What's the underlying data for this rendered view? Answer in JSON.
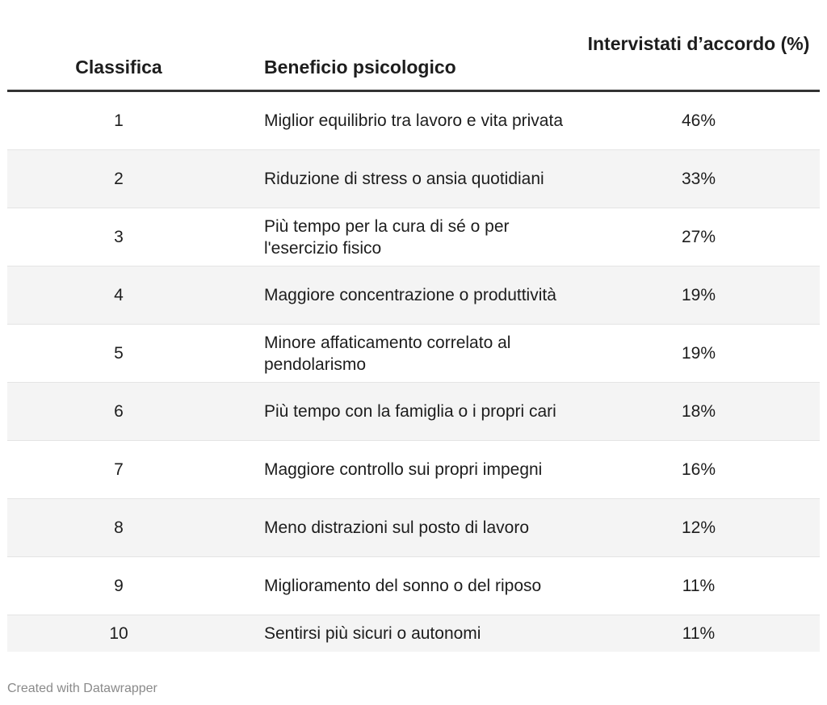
{
  "chart_data": {
    "type": "table",
    "columns": [
      "Classifica",
      "Beneficio psicologico",
      "Intervistati d’accordo (%)"
    ],
    "header": {
      "rank": "Classifica",
      "benefit": "Beneficio psicologico",
      "pct": "Intervistati d’accordo (%)"
    },
    "rows": [
      {
        "rank": "1",
        "benefit": "Miglior equilibrio tra lavoro e vita privata",
        "pct": "46%"
      },
      {
        "rank": "2",
        "benefit": "Riduzione di stress o ansia quotidiani",
        "pct": "33%"
      },
      {
        "rank": "3",
        "benefit": "Più tempo per la cura di sé o per l'esercizio fisico",
        "pct": "27%"
      },
      {
        "rank": "4",
        "benefit": "Maggiore concentrazione o produttività",
        "pct": "19%"
      },
      {
        "rank": "5",
        "benefit": "Minore affaticamento correlato al pendolarismo",
        "pct": "19%"
      },
      {
        "rank": "6",
        "benefit": "Più tempo con la famiglia o i propri cari",
        "pct": "18%"
      },
      {
        "rank": "7",
        "benefit": "Maggiore controllo sui propri impegni",
        "pct": "16%"
      },
      {
        "rank": "8",
        "benefit": "Meno distrazioni sul posto di lavoro",
        "pct": "12%"
      },
      {
        "rank": "9",
        "benefit": "Miglioramento del sonno o del riposo",
        "pct": "11%"
      },
      {
        "rank": "10",
        "benefit": "Sentirsi più sicuri o autonomi",
        "pct": "11%"
      }
    ]
  },
  "footer": {
    "credit": "Created with Datawrapper"
  }
}
